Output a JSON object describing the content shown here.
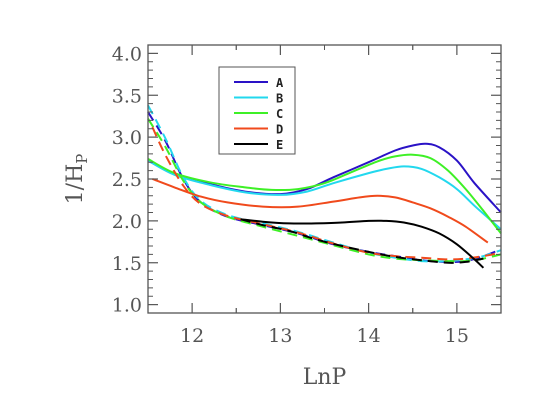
{
  "chart_data": {
    "type": "line",
    "title": "",
    "xlabel": "LnP",
    "ylabel": "1/H",
    "ylabel_subscript": "P",
    "xlim": [
      11.5,
      15.5
    ],
    "ylim": [
      0.9,
      4.1
    ],
    "xticks": [
      12,
      13,
      14,
      15
    ],
    "xtick_labels": [
      "12",
      "13",
      "14",
      "15"
    ],
    "yticks": [
      1.0,
      1.5,
      2.0,
      2.5,
      3.0,
      3.5,
      4.0
    ],
    "ytick_labels": [
      "1.0",
      "1.5",
      "2.0",
      "2.5",
      "3.0",
      "3.5",
      "4.0"
    ],
    "grid": false,
    "legend_placement": "top-left",
    "series": [
      {
        "name": "A",
        "style": "solid",
        "color": "#2a12c6",
        "x": [
          11.5,
          11.8,
          12.2,
          12.6,
          13.0,
          13.3,
          13.6,
          14.0,
          14.3,
          14.5,
          14.65,
          14.8,
          15.0,
          15.2,
          15.5
        ],
        "y": [
          2.72,
          2.56,
          2.44,
          2.35,
          2.32,
          2.38,
          2.52,
          2.7,
          2.84,
          2.9,
          2.92,
          2.88,
          2.72,
          2.45,
          2.1
        ]
      },
      {
        "name": "A",
        "style": "dashed",
        "color": "#2a12c6",
        "x": [
          11.5,
          11.7,
          11.9,
          12.1,
          12.4,
          12.8,
          13.2,
          13.6,
          14.0,
          14.3,
          14.6,
          14.9,
          15.1,
          15.3,
          15.5
        ],
        "y": [
          3.3,
          2.95,
          2.5,
          2.22,
          2.05,
          1.95,
          1.85,
          1.72,
          1.63,
          1.58,
          1.53,
          1.51,
          1.52,
          1.58,
          1.66
        ]
      },
      {
        "name": "B",
        "style": "solid",
        "color": "#22d8ee",
        "x": [
          11.5,
          11.8,
          12.2,
          12.6,
          13.0,
          13.3,
          13.6,
          14.0,
          14.2,
          14.4,
          14.6,
          14.8,
          15.0,
          15.2,
          15.5
        ],
        "y": [
          2.72,
          2.55,
          2.43,
          2.34,
          2.31,
          2.35,
          2.45,
          2.57,
          2.62,
          2.65,
          2.62,
          2.52,
          2.38,
          2.18,
          1.9
        ]
      },
      {
        "name": "B",
        "style": "dashed",
        "color": "#22d8ee",
        "x": [
          11.5,
          11.7,
          11.9,
          12.1,
          12.4,
          12.8,
          13.2,
          13.6,
          14.0,
          14.3,
          14.6,
          14.9,
          15.1,
          15.3,
          15.5
        ],
        "y": [
          3.38,
          2.98,
          2.52,
          2.24,
          2.07,
          1.97,
          1.87,
          1.74,
          1.62,
          1.56,
          1.52,
          1.52,
          1.54,
          1.58,
          1.65
        ]
      },
      {
        "name": "C",
        "style": "solid",
        "color": "#3ef026",
        "x": [
          11.5,
          11.8,
          12.2,
          12.6,
          12.9,
          13.2,
          13.5,
          13.8,
          14.1,
          14.3,
          14.5,
          14.7,
          14.9,
          15.1,
          15.3,
          15.5
        ],
        "y": [
          2.74,
          2.57,
          2.46,
          2.4,
          2.37,
          2.38,
          2.45,
          2.58,
          2.71,
          2.77,
          2.79,
          2.75,
          2.6,
          2.38,
          2.12,
          1.85
        ]
      },
      {
        "name": "C",
        "style": "dashed",
        "color": "#3ef026",
        "x": [
          11.5,
          11.7,
          11.9,
          12.1,
          12.4,
          12.8,
          13.2,
          13.6,
          14.0,
          14.3,
          14.6,
          14.9,
          15.1,
          15.3,
          15.5
        ],
        "y": [
          3.22,
          2.88,
          2.48,
          2.22,
          2.05,
          1.93,
          1.82,
          1.71,
          1.6,
          1.55,
          1.53,
          1.52,
          1.52,
          1.55,
          1.6
        ]
      },
      {
        "name": "D",
        "style": "solid",
        "color": "#f04a1c",
        "x": [
          11.55,
          11.8,
          12.1,
          12.4,
          12.8,
          13.2,
          13.6,
          13.9,
          14.1,
          14.3,
          14.5,
          14.7,
          14.9,
          15.1,
          15.35
        ],
        "y": [
          2.5,
          2.4,
          2.29,
          2.22,
          2.17,
          2.17,
          2.23,
          2.28,
          2.3,
          2.28,
          2.22,
          2.15,
          2.05,
          1.93,
          1.74
        ]
      },
      {
        "name": "D",
        "style": "dashed",
        "color": "#f04a1c",
        "x": [
          11.55,
          11.7,
          11.9,
          12.1,
          12.4,
          12.8,
          13.2,
          13.6,
          14.0,
          14.3,
          14.6,
          14.9,
          15.1,
          15.3,
          15.5
        ],
        "y": [
          3.12,
          2.78,
          2.42,
          2.2,
          2.06,
          1.96,
          1.86,
          1.73,
          1.62,
          1.58,
          1.56,
          1.54,
          1.55,
          1.58,
          1.62
        ]
      },
      {
        "name": "E",
        "style": "solid",
        "color": "#000000",
        "x": [
          12.55,
          12.8,
          13.1,
          13.4,
          13.7,
          14.0,
          14.2,
          14.4,
          14.6,
          14.8,
          15.0,
          15.2,
          15.3
        ],
        "y": [
          2.02,
          1.99,
          1.97,
          1.97,
          1.98,
          2.0,
          2.0,
          1.98,
          1.93,
          1.85,
          1.72,
          1.54,
          1.44
        ]
      },
      {
        "name": "E",
        "style": "dashed",
        "color": "#000000",
        "x": [
          12.55,
          12.8,
          13.1,
          13.4,
          13.7,
          14.0,
          14.3,
          14.6,
          14.9,
          15.1,
          15.3
        ],
        "y": [
          2.02,
          1.95,
          1.88,
          1.78,
          1.7,
          1.63,
          1.57,
          1.53,
          1.5,
          1.51,
          1.55
        ]
      }
    ],
    "legend": [
      {
        "label": "A",
        "color": "#2a12c6"
      },
      {
        "label": "B",
        "color": "#22d8ee"
      },
      {
        "label": "C",
        "color": "#3ef026"
      },
      {
        "label": "D",
        "color": "#f04a1c"
      },
      {
        "label": "E",
        "color": "#000000"
      }
    ],
    "axis_color": "#555555"
  }
}
